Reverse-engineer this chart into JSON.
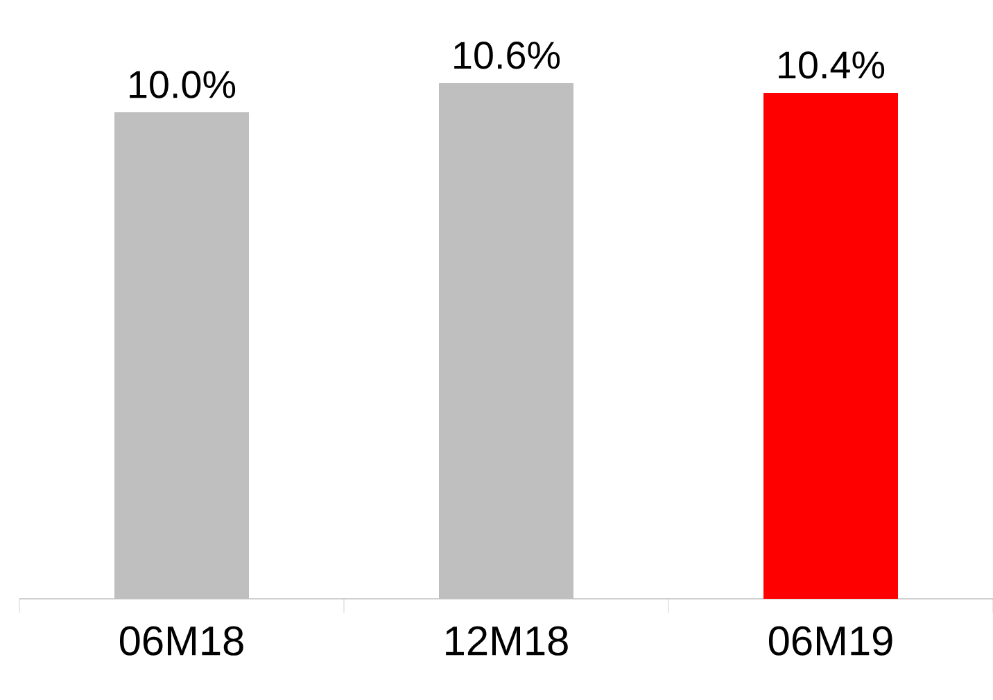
{
  "chart_data": {
    "type": "bar",
    "categories": [
      "06M18",
      "12M18",
      "06M19"
    ],
    "values": [
      10.0,
      10.6,
      10.4
    ],
    "colors": [
      "#bfbfbf",
      "#bfbfbf",
      "#ff0000"
    ],
    "value_labels": [
      "10.0%",
      "10.6%",
      "10.4%"
    ],
    "tick_labels": "x"
  }
}
